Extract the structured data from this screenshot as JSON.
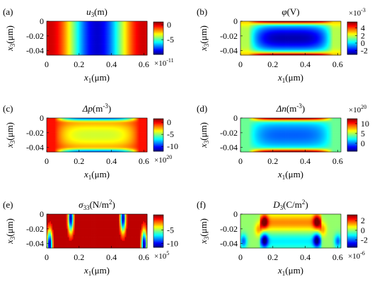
{
  "chart_data": [
    {
      "type": "heatmap",
      "panel_label": "(a)",
      "title_var": "u",
      "title_sub": "3",
      "title_unit": "(m)",
      "xlabel_var": "x",
      "xlabel_sub": "1",
      "xlabel_unit": "(μm)",
      "ylabel_var": "x",
      "ylabel_sub": "3",
      "ylabel_unit": "(μm)",
      "x_ticks": [
        0,
        0.2,
        0.4,
        0.6
      ],
      "x_tick_labels": [
        "0",
        "0.2",
        "0.4",
        "0.6"
      ],
      "y_ticks": [
        0,
        -0.02,
        -0.04
      ],
      "y_tick_labels": [
        "0",
        "-0.02",
        "-0.04"
      ],
      "xlim": [
        0,
        0.62
      ],
      "ylim": [
        -0.046,
        0
      ],
      "colorbar": {
        "range": [
          -10,
          1
        ],
        "ticks": [
          0,
          -5
        ],
        "tick_labels": [
          "0",
          "-5"
        ],
        "multiplier": "×10",
        "exponent": "-11",
        "multiplier_position": "bottom"
      },
      "pattern": "u3"
    },
    {
      "type": "heatmap",
      "panel_label": "(b)",
      "title_var": "φ",
      "title_sub": "",
      "title_unit": "(V)",
      "xlabel_var": "x",
      "xlabel_sub": "1",
      "xlabel_unit": "(μm)",
      "ylabel_var": "x",
      "ylabel_sub": "3",
      "ylabel_unit": "(μm)",
      "x_ticks": [
        0,
        0.2,
        0.4,
        0.6
      ],
      "x_tick_labels": [
        "0",
        "0.2",
        "0.4",
        "0.6"
      ],
      "y_ticks": [
        0,
        -0.02,
        -0.04
      ],
      "y_tick_labels": [
        "0",
        "-0.02",
        "-0.04"
      ],
      "xlim": [
        0,
        0.62
      ],
      "ylim": [
        -0.046,
        0
      ],
      "colorbar": {
        "range": [
          -3,
          5.6
        ],
        "ticks": [
          4,
          2,
          0,
          -2
        ],
        "tick_labels": [
          "4",
          "2",
          "0",
          "-2"
        ],
        "multiplier": "×10",
        "exponent": "-3",
        "multiplier_position": "top"
      },
      "pattern": "phi"
    },
    {
      "type": "heatmap",
      "panel_label": "(c)",
      "title_var": "Δp",
      "title_sub": "",
      "title_unit": "(m",
      "title_unit_sup": "-3",
      "title_unit_end": ")",
      "xlabel_var": "x",
      "xlabel_sub": "1",
      "xlabel_unit": "(μm)",
      "ylabel_var": "x",
      "ylabel_sub": "3",
      "ylabel_unit": "(μm)",
      "x_ticks": [
        0,
        0.2,
        0.4,
        0.6
      ],
      "x_tick_labels": [
        "0",
        "0.2",
        "0.4",
        "0.6"
      ],
      "y_ticks": [
        0,
        -0.02,
        -0.04
      ],
      "y_tick_labels": [
        "0",
        "-0.02",
        "-0.04"
      ],
      "xlim": [
        0,
        0.62
      ],
      "ylim": [
        -0.046,
        0
      ],
      "colorbar": {
        "range": [
          -12,
          1.5
        ],
        "ticks": [
          0,
          -5,
          -10
        ],
        "tick_labels": [
          "0",
          "-5",
          "-10"
        ],
        "multiplier": "×10",
        "exponent": "20",
        "multiplier_position": "bottom"
      },
      "pattern": "dp"
    },
    {
      "type": "heatmap",
      "panel_label": "(d)",
      "title_var": "Δn",
      "title_sub": "",
      "title_unit": "(m",
      "title_unit_sup": "-3",
      "title_unit_end": ")",
      "xlabel_var": "x",
      "xlabel_sub": "1",
      "xlabel_unit": "(μm)",
      "ylabel_var": "x",
      "ylabel_sub": "3",
      "ylabel_unit": "(μm)",
      "x_ticks": [
        0,
        0.2,
        0.4,
        0.6
      ],
      "x_tick_labels": [
        "0",
        "0.2",
        "0.4",
        "0.6"
      ],
      "y_ticks": [
        0,
        -0.02,
        -0.04
      ],
      "y_tick_labels": [
        "0",
        "-0.02",
        "-0.04"
      ],
      "xlim": [
        0,
        0.62
      ],
      "ylim": [
        -0.046,
        0
      ],
      "colorbar": {
        "range": [
          -4,
          12.5
        ],
        "ticks": [
          10,
          5,
          0
        ],
        "tick_labels": [
          "10",
          "5",
          "0"
        ],
        "multiplier": "×10",
        "exponent": "20",
        "multiplier_position": "top"
      },
      "pattern": "dn"
    },
    {
      "type": "heatmap",
      "panel_label": "(e)",
      "title_var": "σ",
      "title_sub": "33",
      "title_unit": "(N/m",
      "title_unit_sup": "2",
      "title_unit_end": ")",
      "xlabel_var": "x",
      "xlabel_sub": "1",
      "xlabel_unit": "(μm)",
      "ylabel_var": "x",
      "ylabel_sub": "3",
      "ylabel_unit": "(μm)",
      "x_ticks": [
        0,
        0.2,
        0.4,
        0.6
      ],
      "x_tick_labels": [
        "0",
        "0.2",
        "0.4",
        "0.6"
      ],
      "y_ticks": [
        0,
        -0.02,
        -0.04
      ],
      "y_tick_labels": [
        "0",
        "-0.02",
        "-0.04"
      ],
      "xlim": [
        0,
        0.62
      ],
      "ylim": [
        -0.046,
        0
      ],
      "colorbar": {
        "range": [
          -11.5,
          0.8
        ],
        "ticks": [
          -5,
          -10
        ],
        "tick_labels": [
          "-5",
          "-10"
        ],
        "multiplier": "×10",
        "exponent": "5",
        "multiplier_position": "bottom"
      },
      "pattern": "s33"
    },
    {
      "type": "heatmap",
      "panel_label": "(f)",
      "title_var": "D",
      "title_sub": "3",
      "title_unit": "(C/m",
      "title_unit_sup": "2",
      "title_unit_end": ")",
      "xlabel_var": "x",
      "xlabel_sub": "1",
      "xlabel_unit": "(μm)",
      "ylabel_var": "x",
      "ylabel_sub": "3",
      "ylabel_unit": "(μm)",
      "x_ticks": [
        0,
        0.2,
        0.4,
        0.6
      ],
      "x_tick_labels": [
        "0",
        "0.2",
        "0.4",
        "0.6"
      ],
      "y_ticks": [
        0,
        -0.02,
        -0.04
      ],
      "y_tick_labels": [
        "0",
        "-0.02",
        "-0.04"
      ],
      "xlim": [
        0,
        0.62
      ],
      "ylim": [
        -0.046,
        0
      ],
      "colorbar": {
        "range": [
          -3.5,
          3.2
        ],
        "ticks": [
          2,
          0,
          -2
        ],
        "tick_labels": [
          "2",
          "0",
          "-2"
        ],
        "multiplier": "×10",
        "exponent": "-6",
        "multiplier_position": "bottom"
      },
      "pattern": "d3"
    }
  ]
}
